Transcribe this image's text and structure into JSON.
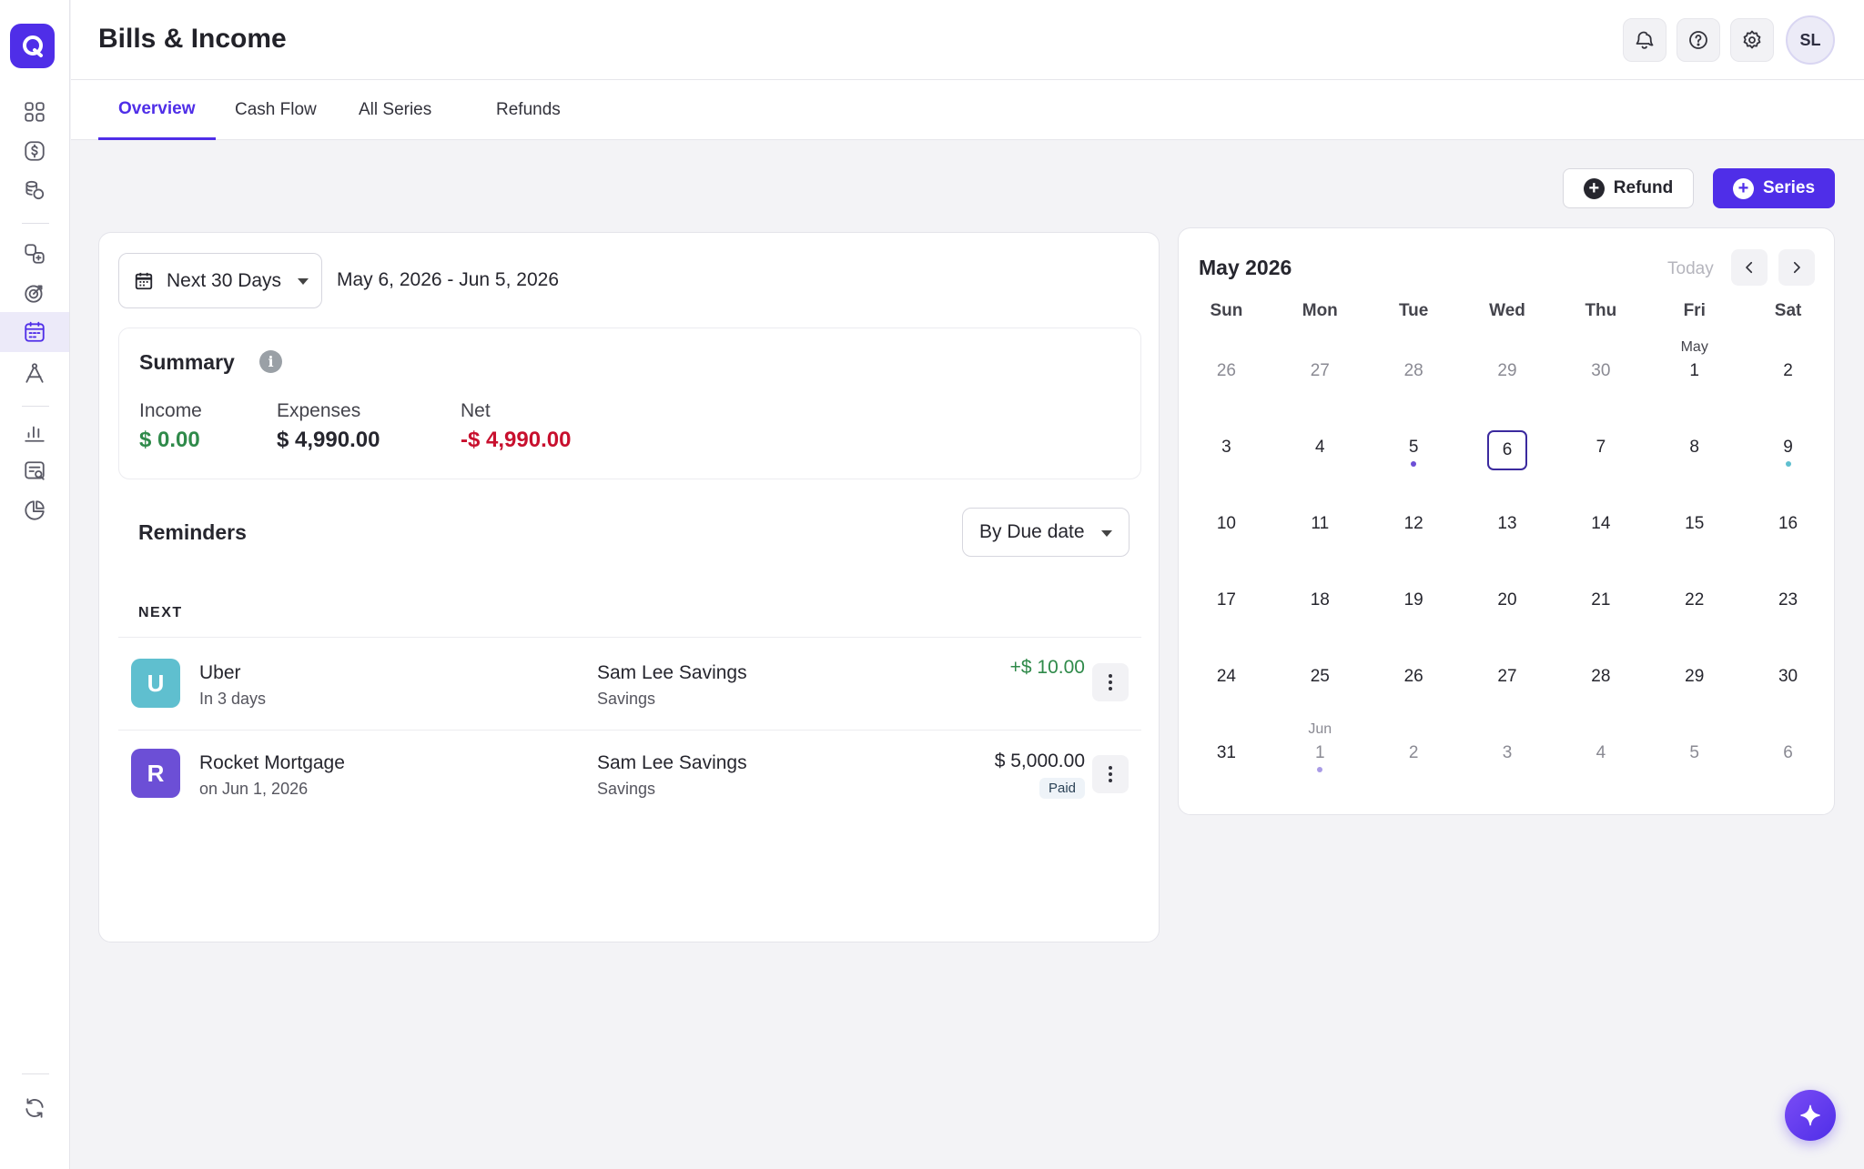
{
  "header": {
    "title": "Bills & Income",
    "avatar_initials": "SL",
    "icons": [
      "bell-icon",
      "help-icon",
      "gear-icon"
    ]
  },
  "tabs": [
    {
      "label": "Overview",
      "active": true
    },
    {
      "label": "Cash Flow",
      "active": false
    },
    {
      "label": "All Series",
      "active": false
    },
    {
      "label": "Refunds",
      "active": false
    }
  ],
  "actions": {
    "refund_label": "Refund",
    "series_label": "Series"
  },
  "range": {
    "selected": "Next 30 Days",
    "dates": "May 6, 2026 - Jun 5, 2026"
  },
  "summary": {
    "title": "Summary",
    "income_label": "Income",
    "income_value": "$ 0.00",
    "expenses_label": "Expenses",
    "expenses_value": "$ 4,990.00",
    "net_label": "Net",
    "net_value": "-$ 4,990.00"
  },
  "reminders": {
    "title": "Reminders",
    "sort_label": "By Due date",
    "group_label": "NEXT",
    "items": [
      {
        "initial": "U",
        "name": "Uber",
        "when": "In 3 days",
        "account": "Sam Lee Savings",
        "account_type": "Savings",
        "amount": "+$ 10.00",
        "badge": "",
        "color": "#5fbfcf",
        "amount_color": "#2f8a4a"
      },
      {
        "initial": "R",
        "name": "Rocket Mortgage",
        "when": "on Jun 1, 2026",
        "account": "Sam Lee Savings",
        "account_type": "Savings",
        "amount": "$ 5,000.00",
        "badge": "Paid",
        "color": "#6c4fd6",
        "amount_color": "#26262e"
      }
    ]
  },
  "calendar": {
    "title": "May 2026",
    "today_label": "Today",
    "weekdays": [
      "Sun",
      "Mon",
      "Tue",
      "Wed",
      "Thu",
      "Fri",
      "Sat"
    ],
    "weeks": [
      [
        {
          "d": "26",
          "muted": true
        },
        {
          "d": "27",
          "muted": true
        },
        {
          "d": "28",
          "muted": true
        },
        {
          "d": "29",
          "muted": true
        },
        {
          "d": "30",
          "muted": true
        },
        {
          "d": "1",
          "tag": "May"
        },
        {
          "d": "2"
        }
      ],
      [
        {
          "d": "3"
        },
        {
          "d": "4"
        },
        {
          "d": "5",
          "dot": "#6c4fd6"
        },
        {
          "d": "6",
          "today": true
        },
        {
          "d": "7"
        },
        {
          "d": "8"
        },
        {
          "d": "9",
          "dot": "#5fbfcf"
        }
      ],
      [
        {
          "d": "10"
        },
        {
          "d": "11"
        },
        {
          "d": "12"
        },
        {
          "d": "13"
        },
        {
          "d": "14"
        },
        {
          "d": "15"
        },
        {
          "d": "16"
        }
      ],
      [
        {
          "d": "17"
        },
        {
          "d": "18"
        },
        {
          "d": "19"
        },
        {
          "d": "20"
        },
        {
          "d": "21"
        },
        {
          "d": "22"
        },
        {
          "d": "23"
        }
      ],
      [
        {
          "d": "24"
        },
        {
          "d": "25"
        },
        {
          "d": "26"
        },
        {
          "d": "27"
        },
        {
          "d": "28"
        },
        {
          "d": "29"
        },
        {
          "d": "30"
        }
      ],
      [
        {
          "d": "31"
        },
        {
          "d": "1",
          "muted": true,
          "tag": "Jun",
          "dot": "#a99be6"
        },
        {
          "d": "2",
          "muted": true
        },
        {
          "d": "3",
          "muted": true
        },
        {
          "d": "4",
          "muted": true
        },
        {
          "d": "5",
          "muted": true
        },
        {
          "d": "6",
          "muted": true
        }
      ]
    ]
  },
  "colors": {
    "accent": "#4f2ee8",
    "income": "#2f8a4a",
    "net_negative": "#c8102e"
  }
}
